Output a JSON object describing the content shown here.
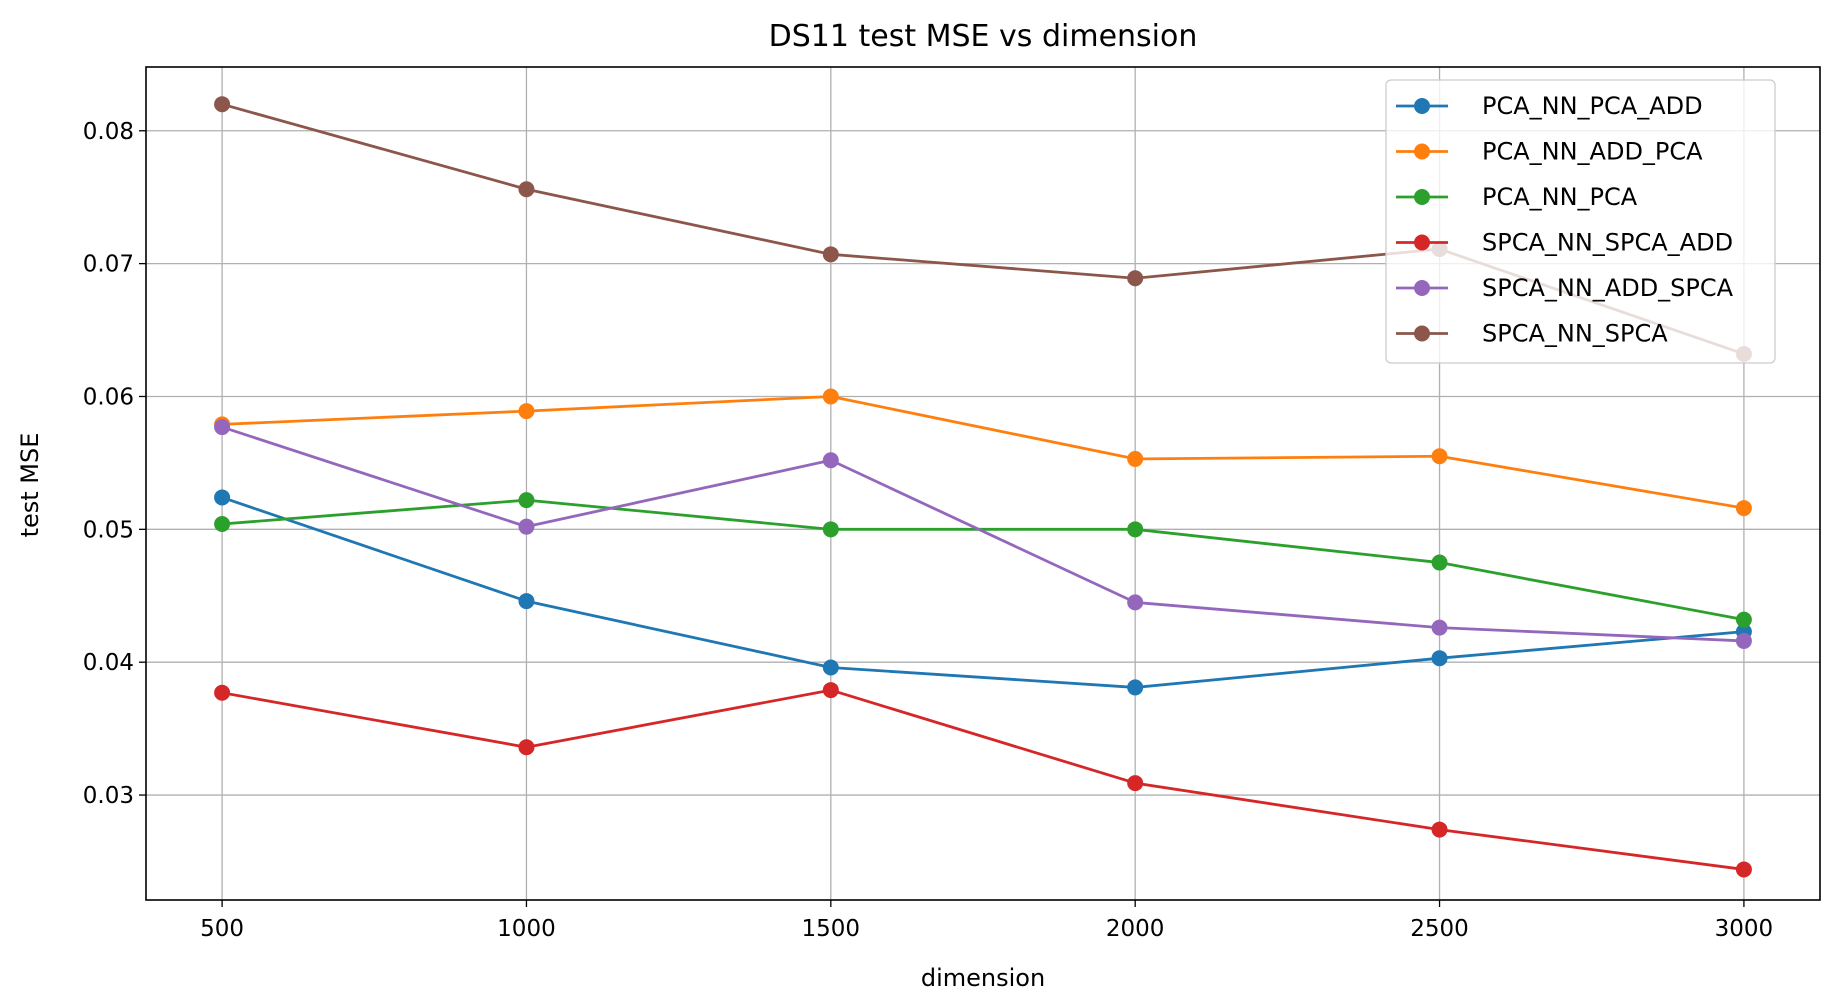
{
  "chart_data": {
    "type": "line",
    "title": "DS11 test MSE vs dimension",
    "xlabel": "dimension",
    "ylabel": "test MSE",
    "x": [
      500,
      1000,
      1500,
      2000,
      2500,
      3000
    ],
    "x_tick_labels": [
      "500",
      "1000",
      "1500",
      "2000",
      "2500",
      "3000"
    ],
    "y_ticks": [
      0.03,
      0.04,
      0.05,
      0.06,
      0.07,
      0.08
    ],
    "y_tick_labels": [
      "0.03",
      "0.04",
      "0.05",
      "0.06",
      "0.07",
      "0.08"
    ],
    "xlim": [
      375,
      3125
    ],
    "ylim": [
      0.0221,
      0.0848
    ],
    "grid": true,
    "legend_position": "top-right",
    "series": [
      {
        "name": "PCA_NN_PCA_ADD",
        "color": "#1f77b4",
        "values": [
          0.0524,
          0.0446,
          0.0396,
          0.0381,
          0.0403,
          0.0423
        ]
      },
      {
        "name": "PCA_NN_ADD_PCA",
        "color": "#ff7f0e",
        "values": [
          0.0579,
          0.0589,
          0.06,
          0.0553,
          0.0555,
          0.0516
        ]
      },
      {
        "name": "PCA_NN_PCA",
        "color": "#2ca02c",
        "values": [
          0.0504,
          0.0522,
          0.05,
          0.05,
          0.0475,
          0.0432
        ]
      },
      {
        "name": "SPCA_NN_SPCA_ADD",
        "color": "#d62728",
        "values": [
          0.0377,
          0.0336,
          0.0379,
          0.0309,
          0.0274,
          0.0244
        ]
      },
      {
        "name": "SPCA_NN_ADD_SPCA",
        "color": "#9467bd",
        "values": [
          0.0577,
          0.0502,
          0.0552,
          0.0445,
          0.0426,
          0.0416
        ]
      },
      {
        "name": "SPCA_NN_SPCA",
        "color": "#8c564b",
        "values": [
          0.082,
          0.0756,
          0.0707,
          0.0689,
          0.0711,
          0.0632
        ]
      }
    ]
  }
}
